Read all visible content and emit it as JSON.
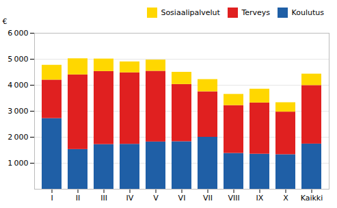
{
  "chart_data": {
    "type": "bar",
    "stacked": true,
    "ylabel": "€",
    "categories": [
      "I",
      "II",
      "III",
      "IV",
      "V",
      "VI",
      "VII",
      "VIII",
      "IX",
      "X",
      "Kaikki"
    ],
    "series": [
      {
        "name": "Koulutus",
        "color": "#1F5FA6",
        "values": [
          2720,
          1530,
          1720,
          1730,
          1820,
          1830,
          2000,
          1380,
          1350,
          1330,
          1740
        ]
      },
      {
        "name": "Terveys",
        "color": "#E02020",
        "values": [
          1480,
          2870,
          2810,
          2750,
          2720,
          2200,
          1750,
          1840,
          1970,
          1640,
          2250
        ]
      },
      {
        "name": "Sosiaalipalvelut",
        "color": "#FFD700",
        "values": [
          570,
          620,
          480,
          420,
          430,
          470,
          470,
          430,
          530,
          360,
          440
        ]
      }
    ],
    "ylim": [
      0,
      6000
    ],
    "yticks": [
      {
        "value": 1000,
        "label": "1 000"
      },
      {
        "value": 2000,
        "label": "2 000"
      },
      {
        "value": 3000,
        "label": "3 000"
      },
      {
        "value": 4000,
        "label": "4 000"
      },
      {
        "value": 5000,
        "label": "5 000"
      },
      {
        "value": 6000,
        "label": "6 000"
      }
    ],
    "grid": true,
    "legend": "upper right"
  }
}
